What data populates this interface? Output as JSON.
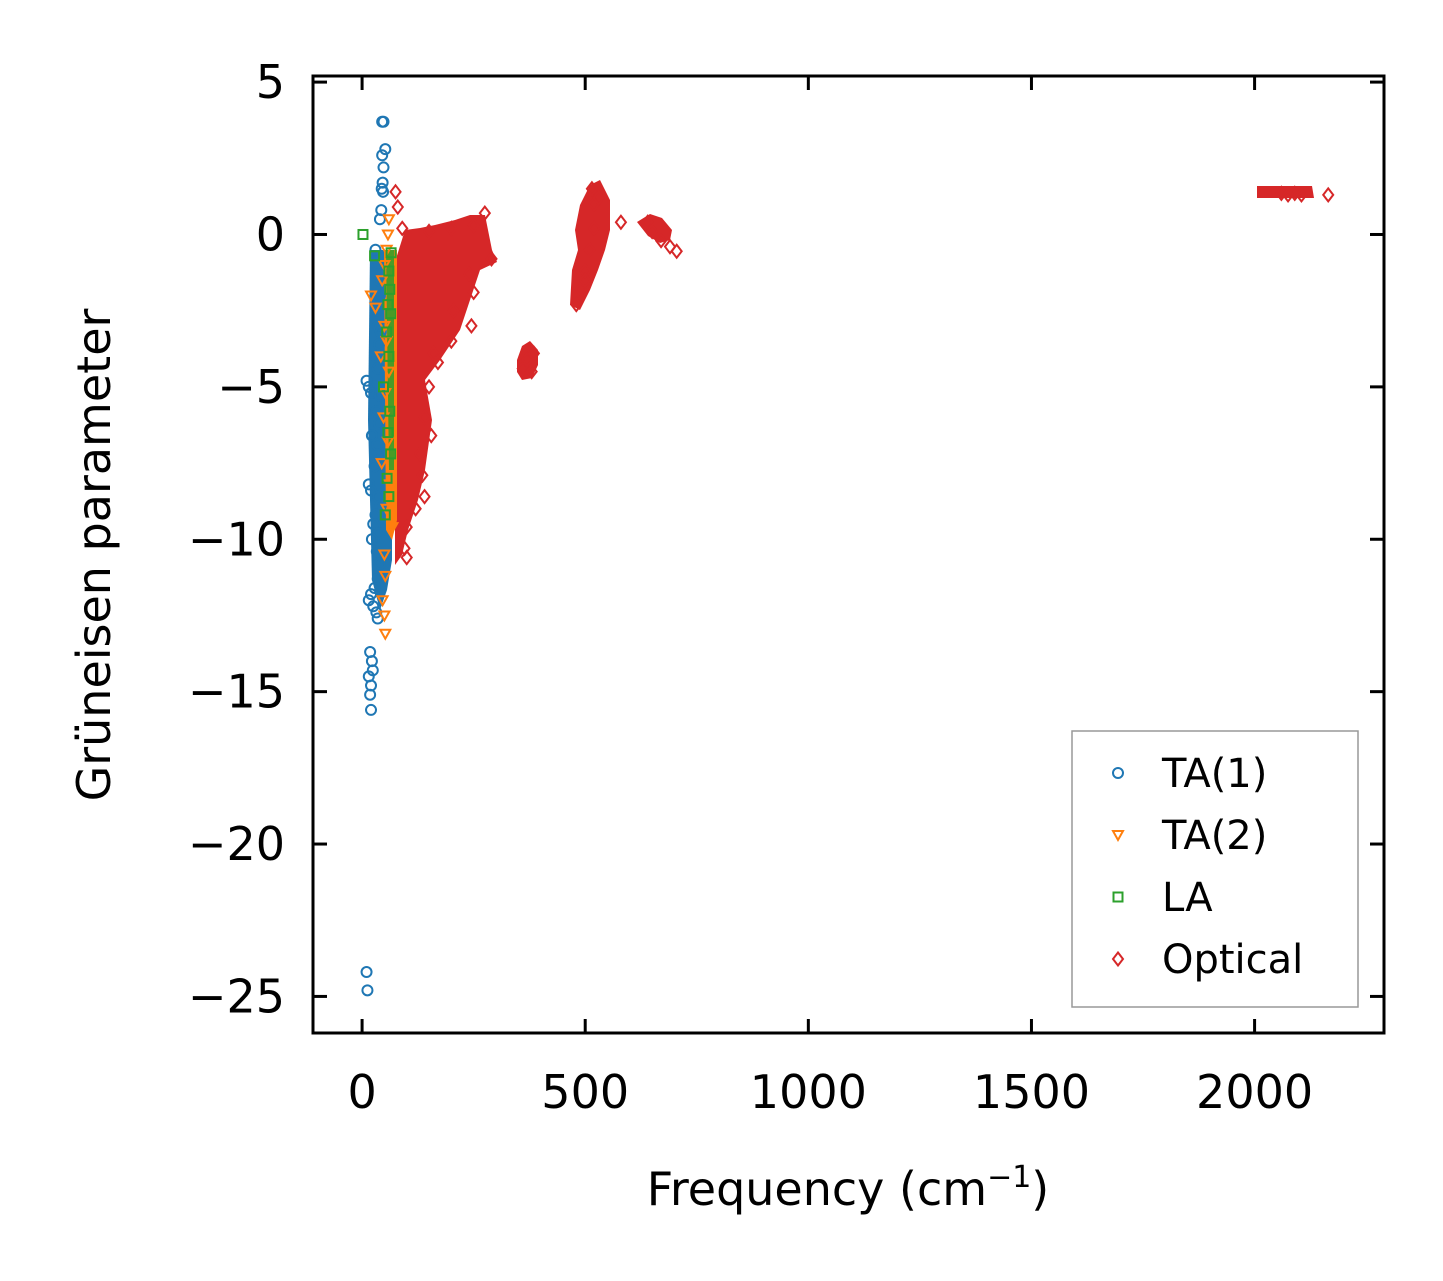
{
  "chart_data": {
    "type": "scatter",
    "xlabel": "Frequency (cm",
    "xlabel_sup": "−1",
    "xlabel_close": ")",
    "ylabel": "Grüneisen parameter",
    "xlim": [
      -110,
      2290
    ],
    "ylim": [
      -26.2,
      5.2
    ],
    "xticks": [
      0,
      500,
      1000,
      1500,
      2000
    ],
    "xtick_labels": [
      "0",
      "500",
      "1000",
      "1500",
      "2000"
    ],
    "yticks": [
      5,
      0,
      -5,
      -10,
      -15,
      -20,
      -25
    ],
    "ytick_labels": [
      "5",
      "0",
      "−5",
      "−10",
      "−15",
      "−20",
      "−25"
    ],
    "legend_position": "lower-right",
    "series": [
      {
        "name": "TA(1)",
        "marker": "circle",
        "color": "#1f77b4",
        "points": [
          [
            45,
            3.7
          ],
          [
            48,
            3.7
          ],
          [
            52,
            2.8
          ],
          [
            45,
            2.6
          ],
          [
            48,
            2.2
          ],
          [
            46,
            1.7
          ],
          [
            44,
            1.5
          ],
          [
            47,
            1.4
          ],
          [
            43,
            0.8
          ],
          [
            40,
            0.5
          ],
          [
            30,
            -0.5
          ],
          [
            35,
            -1.0
          ],
          [
            38,
            -1.5
          ],
          [
            40,
            -2.0
          ],
          [
            33,
            -2.5
          ],
          [
            36,
            -3.0
          ],
          [
            42,
            -3.2
          ],
          [
            38,
            -3.6
          ],
          [
            30,
            -4.0
          ],
          [
            35,
            -4.4
          ],
          [
            10,
            -4.8
          ],
          [
            15,
            -5.0
          ],
          [
            20,
            -5.2
          ],
          [
            40,
            -5.3
          ],
          [
            32,
            -5.8
          ],
          [
            38,
            -6.2
          ],
          [
            22,
            -6.6
          ],
          [
            34,
            -6.9
          ],
          [
            40,
            -7.3
          ],
          [
            28,
            -7.6
          ],
          [
            15,
            -8.2
          ],
          [
            20,
            -8.4
          ],
          [
            36,
            -8.6
          ],
          [
            42,
            -8.9
          ],
          [
            30,
            -9.2
          ],
          [
            25,
            -9.5
          ],
          [
            38,
            -9.8
          ],
          [
            22,
            -10.0
          ],
          [
            33,
            -10.4
          ],
          [
            40,
            -10.8
          ],
          [
            35,
            -11.3
          ],
          [
            28,
            -11.6
          ],
          [
            20,
            -11.8
          ],
          [
            15,
            -12.0
          ],
          [
            25,
            -12.2
          ],
          [
            32,
            -12.4
          ],
          [
            35,
            -12.6
          ],
          [
            18,
            -13.7
          ],
          [
            22,
            -14.0
          ],
          [
            24,
            -14.3
          ],
          [
            15,
            -14.5
          ],
          [
            20,
            -14.8
          ],
          [
            18,
            -15.1
          ],
          [
            20,
            -15.6
          ],
          [
            10,
            -24.2
          ],
          [
            12,
            -24.8
          ]
        ]
      },
      {
        "name": "TA(2)",
        "marker": "triangle-down",
        "color": "#ff7f0e",
        "points": [
          [
            60,
            0.5
          ],
          [
            58,
            0.0
          ],
          [
            55,
            -0.5
          ],
          [
            50,
            -1.0
          ],
          [
            45,
            -1.5
          ],
          [
            20,
            -2.0
          ],
          [
            30,
            -2.4
          ],
          [
            50,
            -3.0
          ],
          [
            55,
            -3.5
          ],
          [
            42,
            -4.0
          ],
          [
            60,
            -4.5
          ],
          [
            52,
            -5.2
          ],
          [
            48,
            -6.0
          ],
          [
            58,
            -6.8
          ],
          [
            44,
            -7.5
          ],
          [
            62,
            -8.2
          ],
          [
            55,
            -9.0
          ],
          [
            68,
            -9.6
          ],
          [
            50,
            -10.5
          ],
          [
            52,
            -11.2
          ],
          [
            46,
            -12.0
          ],
          [
            50,
            -12.5
          ],
          [
            52,
            -13.1
          ]
        ]
      },
      {
        "name": "LA",
        "marker": "square",
        "color": "#2ca02c",
        "points": [
          [
            2,
            0.0
          ],
          [
            28,
            -0.7
          ],
          [
            65,
            -0.6
          ],
          [
            60,
            -1.2
          ],
          [
            62,
            -1.8
          ],
          [
            58,
            -2.3
          ],
          [
            64,
            -2.6
          ],
          [
            55,
            -3.2
          ],
          [
            60,
            -4.0
          ],
          [
            48,
            -5.0
          ],
          [
            62,
            -5.8
          ],
          [
            58,
            -6.5
          ],
          [
            64,
            -7.2
          ],
          [
            56,
            -8.0
          ],
          [
            60,
            -8.6
          ],
          [
            52,
            -9.2
          ]
        ]
      },
      {
        "name": "Optical",
        "marker": "diamond",
        "color": "#d62728",
        "points": [
          [
            75,
            1.4
          ],
          [
            80,
            0.9
          ],
          [
            90,
            0.2
          ],
          [
            150,
            0.1
          ],
          [
            200,
            0.2
          ],
          [
            250,
            0.3
          ],
          [
            275,
            0.7
          ],
          [
            290,
            -0.8
          ],
          [
            240,
            -1.3
          ],
          [
            250,
            -1.9
          ],
          [
            205,
            -2.5
          ],
          [
            245,
            -3.0
          ],
          [
            200,
            -3.5
          ],
          [
            160,
            -3.9
          ],
          [
            170,
            -4.2
          ],
          [
            150,
            -5.0
          ],
          [
            140,
            -6.0
          ],
          [
            155,
            -6.6
          ],
          [
            130,
            -7.2
          ],
          [
            135,
            -7.9
          ],
          [
            140,
            -8.6
          ],
          [
            120,
            -9.0
          ],
          [
            100,
            -9.6
          ],
          [
            95,
            -10.3
          ],
          [
            100,
            -10.6
          ],
          [
            360,
            -4.4
          ],
          [
            370,
            -4.1
          ],
          [
            385,
            -3.9
          ],
          [
            380,
            -4.5
          ],
          [
            480,
            -2.3
          ],
          [
            490,
            -1.8
          ],
          [
            500,
            -1.2
          ],
          [
            510,
            -0.5
          ],
          [
            520,
            0.2
          ],
          [
            520,
            1.0
          ],
          [
            515,
            1.5
          ],
          [
            530,
            1.2
          ],
          [
            500,
            -1.5
          ],
          [
            580,
            0.4
          ],
          [
            640,
            0.4
          ],
          [
            650,
            0.1
          ],
          [
            670,
            -0.2
          ],
          [
            690,
            -0.4
          ],
          [
            705,
            -0.55
          ],
          [
            2060,
            1.35
          ],
          [
            2075,
            1.3
          ],
          [
            2090,
            1.35
          ],
          [
            2105,
            1.3
          ],
          [
            2165,
            1.3
          ]
        ]
      }
    ]
  }
}
